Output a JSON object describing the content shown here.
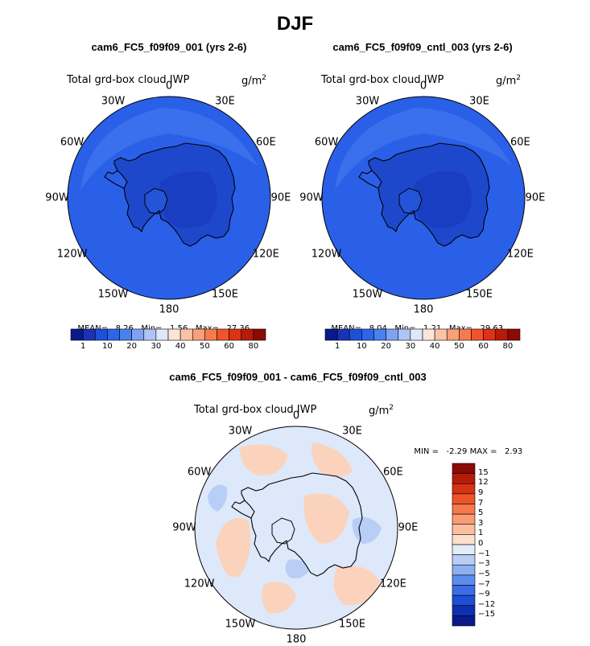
{
  "title": "DJF",
  "variable_label": "Total grd-box cloud IWP",
  "units_base": "g/m",
  "units_exp": "2",
  "longitude_labels": [
    "0",
    "30E",
    "60E",
    "90E",
    "120E",
    "150E",
    "180",
    "150W",
    "120W",
    "90W",
    "60W",
    "30W"
  ],
  "panels": [
    {
      "title": "cam6_FC5_f09f09_001 (yrs 2-6)",
      "stats": {
        "mean_label": "MEAN=",
        "mean": "8.26",
        "min_label": "Min=",
        "min": "1.56",
        "max_label": "Max=",
        "max": "27.36"
      }
    },
    {
      "title": "cam6_FC5_f09f09_cntl_003 (yrs 2-6)",
      "stats": {
        "mean_label": "MEAN=",
        "mean": "8.04",
        "min_label": "Min=",
        "min": "1.21",
        "max_label": "Max=",
        "max": "29.63"
      }
    },
    {
      "title": "cam6_FC5_f09f09_001 - cam6_FC5_f09f09_cntl_003",
      "stats": {
        "min_label": "MIN =",
        "min": "-2.29",
        "max_label": "MAX =",
        "max": "2.93"
      }
    }
  ],
  "colorbar_top": {
    "tick_labels": [
      "1",
      "10",
      "20",
      "30",
      "40",
      "50",
      "60",
      "80"
    ],
    "colors": [
      "#0a1a8c",
      "#1a32b4",
      "#1f4fd8",
      "#2a66e8",
      "#4a80f0",
      "#7fa2f2",
      "#aec4f6",
      "#dde8fa",
      "#fde4d6",
      "#fbc3a6",
      "#f9a07a",
      "#f77a4f",
      "#f2532b",
      "#dc3216",
      "#b81a0c",
      "#8c0a04"
    ]
  },
  "colorbar_diff": {
    "tick_labels": [
      "15",
      "12",
      "9",
      "7",
      "5",
      "3",
      "1",
      "0",
      "−1",
      "−3",
      "−5",
      "−7",
      "−9",
      "−12",
      "−15"
    ],
    "colors": [
      "#8c0a04",
      "#b41c0a",
      "#d63214",
      "#ee5428",
      "#f7784a",
      "#f99c74",
      "#fbbfa0",
      "#fde0cc",
      "#e3ecfb",
      "#b8cef6",
      "#8cb0f2",
      "#5c8cee",
      "#3a6ce6",
      "#1e4ed6",
      "#0e30b0",
      "#0a1a8c"
    ]
  }
}
